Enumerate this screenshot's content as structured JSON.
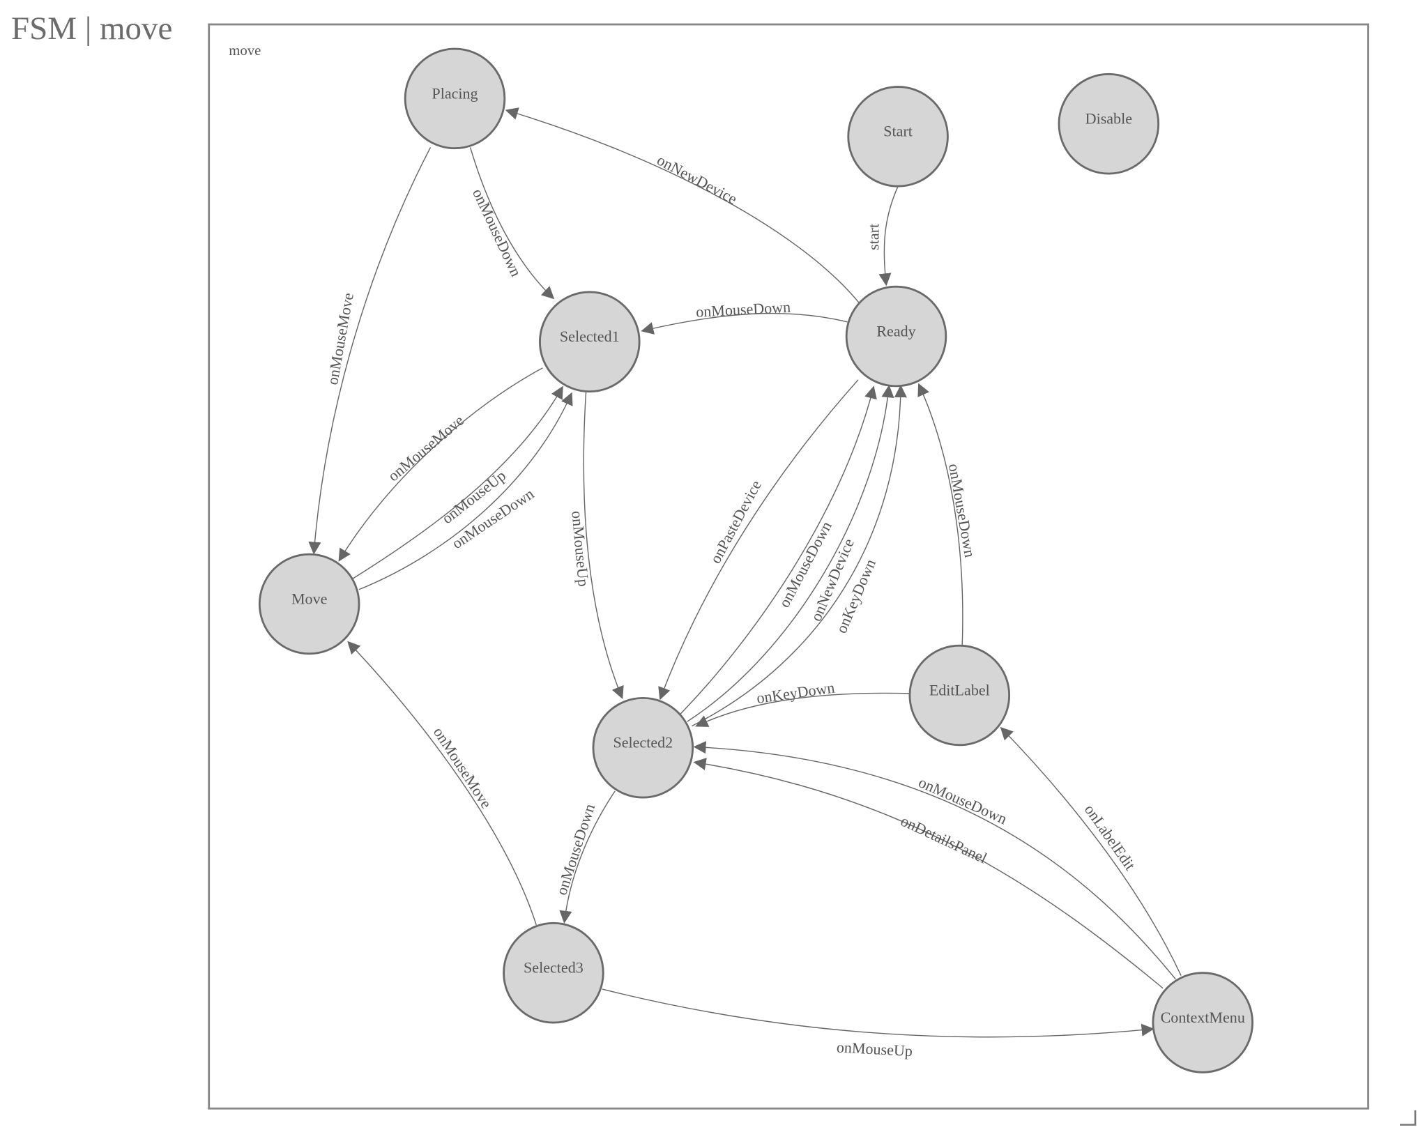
{
  "title": "FSM | move",
  "diagram": {
    "group_label": "move",
    "colors": {
      "node_fill": "#d6d6d6",
      "node_stroke": "#6a6a6a",
      "edge": "#666666"
    },
    "states": [
      "Placing",
      "Start",
      "Disable",
      "Selected1",
      "Ready",
      "Move",
      "EditLabel",
      "Selected2",
      "Selected3",
      "ContextMenu"
    ],
    "transitions": [
      {
        "from": "Start",
        "to": "Ready",
        "label": "start"
      },
      {
        "from": "Ready",
        "to": "Placing",
        "label": "onNewDevice"
      },
      {
        "from": "Placing",
        "to": "Selected1",
        "label": "onMouseDown"
      },
      {
        "from": "Placing",
        "to": "Move",
        "label": "onMouseMove"
      },
      {
        "from": "Ready",
        "to": "Selected1",
        "label": "onMouseDown"
      },
      {
        "from": "Selected1",
        "to": "Move",
        "label": "onMouseMove"
      },
      {
        "from": "Move",
        "to": "Selected1",
        "label": "onMouseUp"
      },
      {
        "from": "Move",
        "to": "Selected1",
        "label": "onMouseDown"
      },
      {
        "from": "Selected1",
        "to": "Selected2",
        "label": "onMouseUp"
      },
      {
        "from": "Ready",
        "to": "Selected2",
        "label": "onPasteDevice"
      },
      {
        "from": "Selected2",
        "to": "Ready",
        "label": "onMouseDown"
      },
      {
        "from": "Selected2",
        "to": "Ready",
        "label": "onNewDevice"
      },
      {
        "from": "Selected2",
        "to": "Ready",
        "label": "onKeyDown"
      },
      {
        "from": "EditLabel",
        "to": "Ready",
        "label": "onMouseDown"
      },
      {
        "from": "EditLabel",
        "to": "Selected2",
        "label": "onKeyDown"
      },
      {
        "from": "Selected2",
        "to": "Selected3",
        "label": "onMouseDown"
      },
      {
        "from": "Selected3",
        "to": "Move",
        "label": "onMouseMove"
      },
      {
        "from": "Selected3",
        "to": "ContextMenu",
        "label": "onMouseUp"
      },
      {
        "from": "ContextMenu",
        "to": "EditLabel",
        "label": "onLabelEdit"
      },
      {
        "from": "ContextMenu",
        "to": "Selected2",
        "label": "onMouseDown"
      },
      {
        "from": "ContextMenu",
        "to": "Selected2",
        "label": "onDetailsPanel"
      }
    ]
  }
}
